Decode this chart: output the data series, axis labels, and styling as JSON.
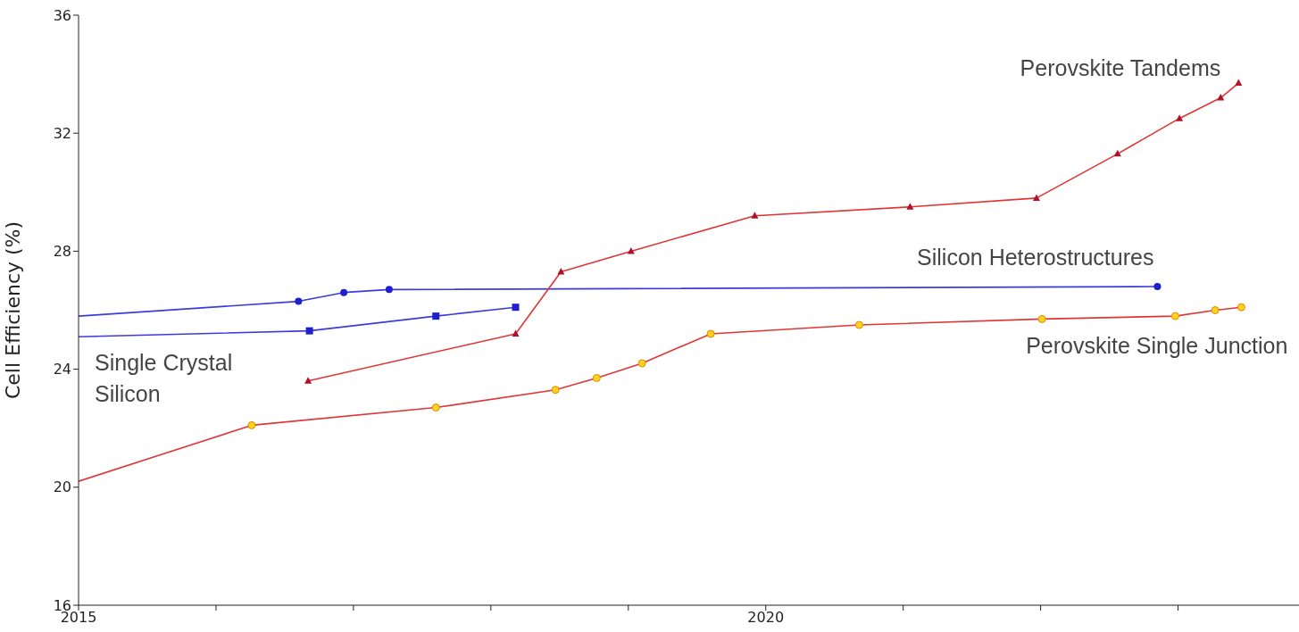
{
  "chart_data": {
    "type": "line",
    "ylabel": "Cell Efficiency (%)",
    "xlim": [
      2015,
      2023.88
    ],
    "ylim": [
      16,
      36
    ],
    "yticks": [
      16,
      20,
      24,
      28,
      32,
      36
    ],
    "xticks": [
      2015,
      {
        "value": 2016,
        "label": null
      },
      {
        "value": 2017,
        "label": null
      },
      {
        "value": 2018,
        "label": null
      },
      {
        "value": 2019,
        "label": null
      },
      2020,
      {
        "value": 2021,
        "label": null
      },
      {
        "value": 2022,
        "label": null
      },
      {
        "value": 2023,
        "label": null
      }
    ],
    "series": [
      {
        "name": "Single Crystal Silicon",
        "color": "#3b3bdc",
        "marker": "square",
        "x": [
          2015,
          2016.68,
          2017.6,
          2018.18
        ],
        "values": [
          25.1,
          25.3,
          25.8,
          26.1
        ]
      },
      {
        "name": "Silicon Heterostructures",
        "color": "#3b3bdc",
        "marker": "circle",
        "x": [
          2015,
          2016.6,
          2016.93,
          2017.26,
          2022.85
        ],
        "values": [
          25.8,
          26.3,
          26.6,
          26.7,
          26.8
        ]
      },
      {
        "name": "Perovskite Tandems",
        "color": "#e03535",
        "marker": "triangle",
        "x": [
          2016.67,
          2018.18,
          2018.51,
          2019.02,
          2019.92,
          2021.05,
          2021.97,
          2022.56,
          2023.01,
          2023.31,
          2023.44
        ],
        "values": [
          23.6,
          25.2,
          27.3,
          28.0,
          29.2,
          29.5,
          29.8,
          31.3,
          32.5,
          33.2,
          33.7
        ]
      },
      {
        "name": "Perovskite Single Junction",
        "color": "#e03535",
        "marker": "circle",
        "x": [
          2015,
          2016.26,
          2017.6,
          2018.47,
          2018.77,
          2019.1,
          2019.6,
          2020.68,
          2022.01,
          2022.98,
          2023.27,
          2023.46
        ],
        "values": [
          20.2,
          22.1,
          22.7,
          23.3,
          23.7,
          24.2,
          25.2,
          25.5,
          25.7,
          25.8,
          26.0,
          26.1
        ]
      }
    ]
  }
}
